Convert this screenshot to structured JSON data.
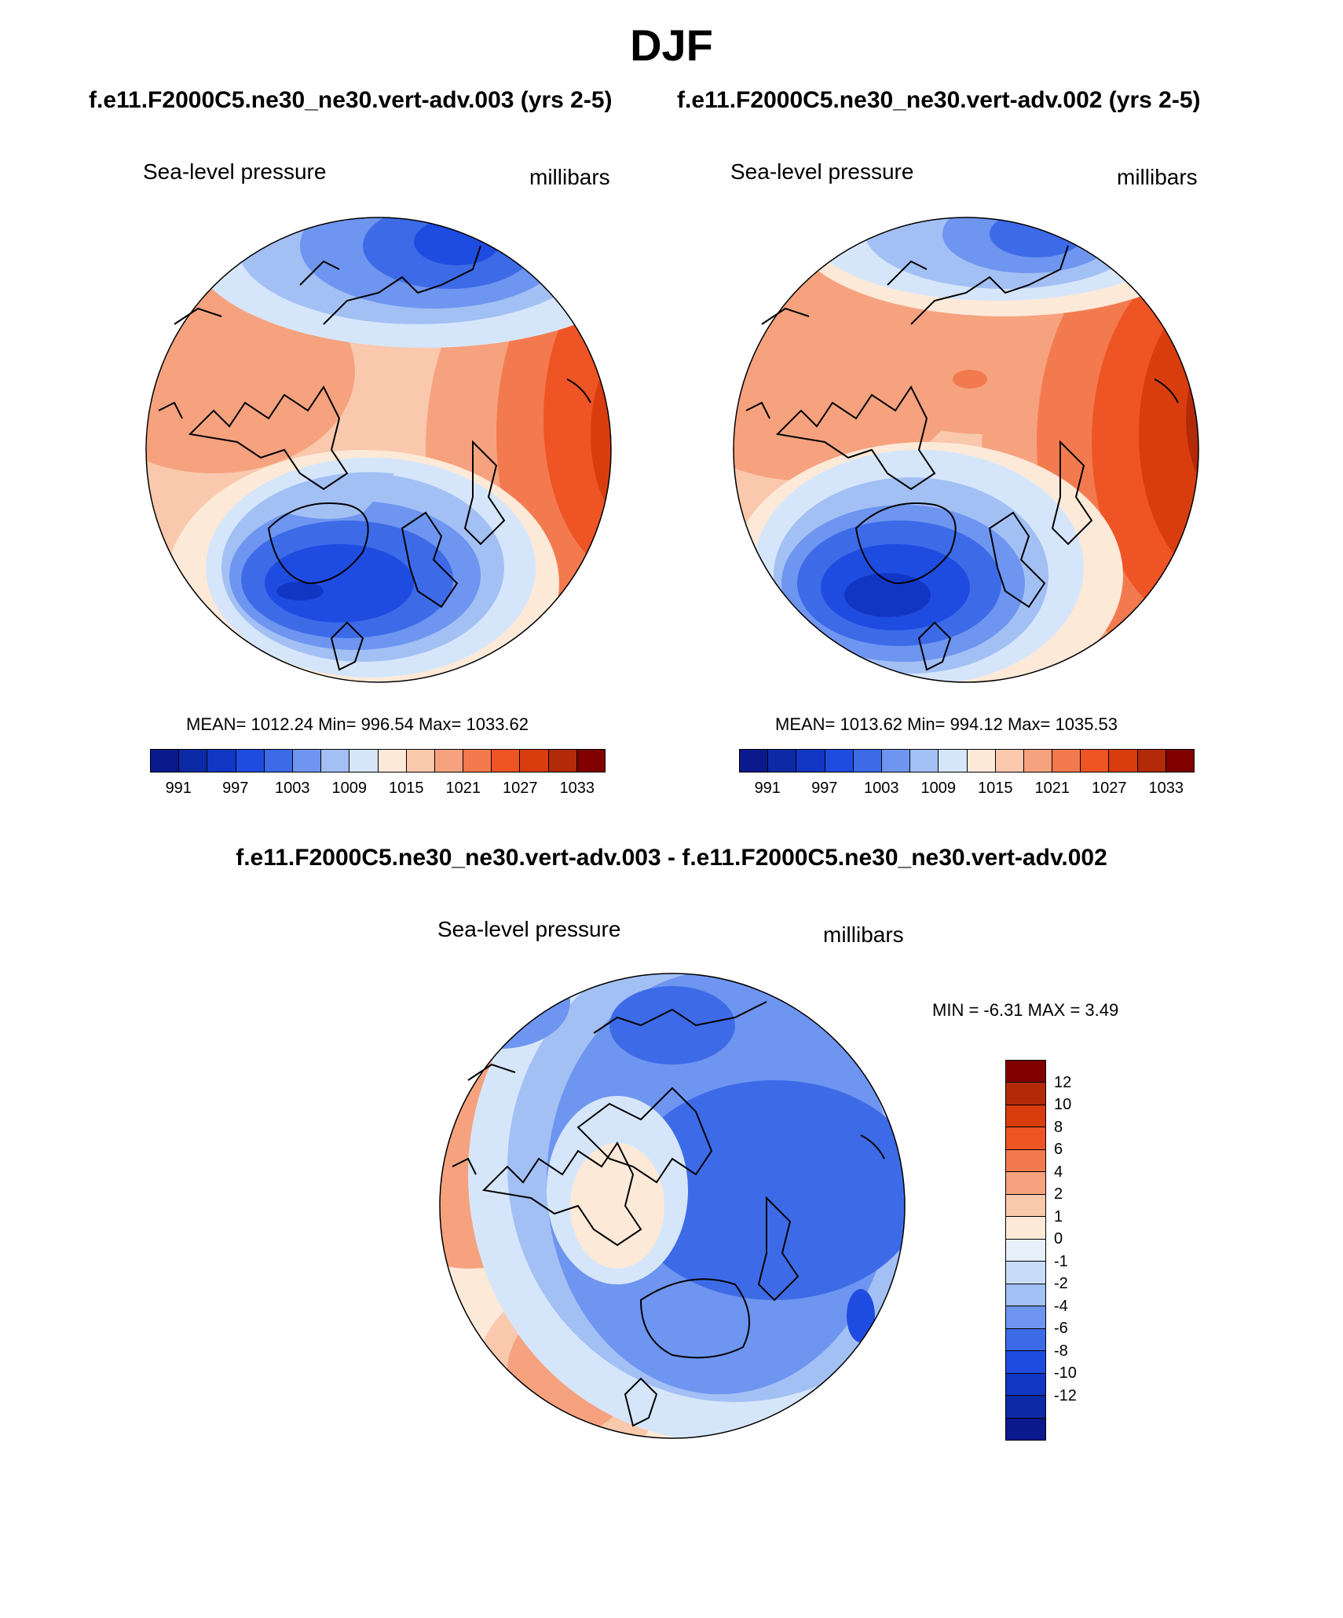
{
  "figure": {
    "season": "DJF",
    "case_a_title": "f.e11.F2000C5.ne30_ne30.vert-adv.003 (yrs 2-5)",
    "case_b_title": "f.e11.F2000C5.ne30_ne30.vert-adv.002 (yrs 2-5)",
    "diff_title": "f.e11.F2000C5.ne30_ne30.vert-adv.003 - f.e11.F2000C5.ne30_ne30.vert-adv.002"
  },
  "panels": {
    "a": {
      "variable": "Sea-level pressure",
      "units": "millibars",
      "stats": "MEAN= 1012.24  Min= 996.54  Max= 1033.62",
      "mean": 1012.24,
      "min": 996.54,
      "max": 1033.62
    },
    "b": {
      "variable": "Sea-level pressure",
      "units": "millibars",
      "stats": "MEAN= 1013.62  Min= 994.12  Max= 1035.53",
      "mean": 1013.62,
      "min": 994.12,
      "max": 1035.53
    },
    "diff": {
      "variable": "Sea-level pressure",
      "units": "millibars",
      "stats": "MIN =  -6.31 MAX =   3.49",
      "min": -6.31,
      "max": 3.49
    }
  },
  "colorbars": {
    "absolute": {
      "colors": [
        "#0a1a8c",
        "#0d2aa6",
        "#1236c4",
        "#1f4ce0",
        "#3d6be8",
        "#6e95f0",
        "#a3c0f5",
        "#d6e6fa",
        "#fde9d8",
        "#f9c8ad",
        "#f6a27f",
        "#f37a4f",
        "#ef5425",
        "#d93d0e",
        "#b32a08",
        "#800000"
      ],
      "tick_labels": [
        "991",
        "997",
        "1003",
        "1009",
        "1015",
        "1021",
        "1027",
        "1033"
      ]
    },
    "difference": {
      "colors": [
        "#800000",
        "#b32a08",
        "#d93d0e",
        "#ef5425",
        "#f37a4f",
        "#f6a27f",
        "#f9c8ad",
        "#fde9d8",
        "#e6f0fb",
        "#c8dcf8",
        "#a3c0f5",
        "#6e95f0",
        "#3d6be8",
        "#1f4ce0",
        "#1236c4",
        "#0d2aa6",
        "#0a1a8c"
      ],
      "tick_labels": [
        "12",
        "10",
        "8",
        "6",
        "4",
        "2",
        "1",
        "0",
        "-1",
        "-2",
        "-4",
        "-6",
        "-8",
        "-10",
        "-12"
      ]
    }
  }
}
